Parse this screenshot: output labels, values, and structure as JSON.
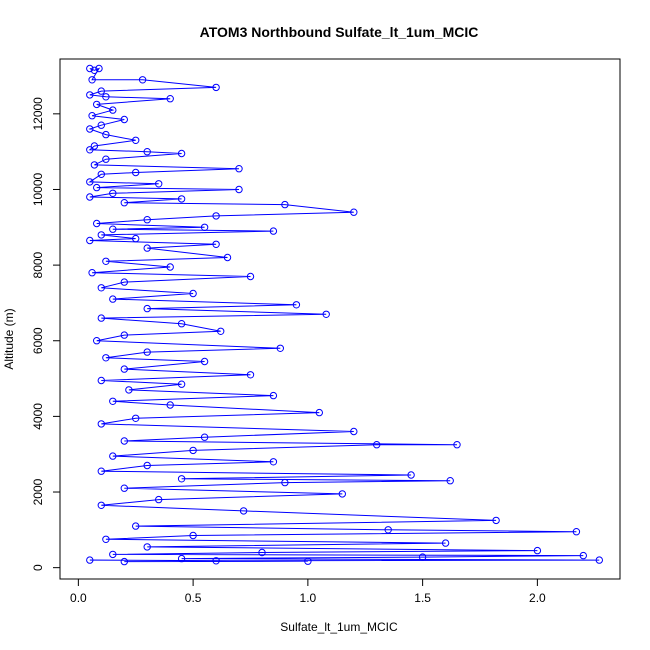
{
  "chart_data": {
    "type": "scatter",
    "title": "ATOM3 Northbound Sulfate_lt_1um_MCIC",
    "xlabel": "Sulfate_lt_1um_MCIC",
    "ylabel": "Altitude (m)",
    "xlim": [
      -0.08,
      2.36
    ],
    "ylim": [
      -300,
      13450
    ],
    "xticks": [
      0.0,
      0.5,
      1.0,
      1.5,
      2.0
    ],
    "xtick_labels": [
      "0.0",
      "0.5",
      "1.0",
      "1.5",
      "2.0"
    ],
    "yticks": [
      0,
      2000,
      4000,
      6000,
      8000,
      10000,
      12000
    ],
    "ytick_labels": [
      "0",
      "2000",
      "4000",
      "6000",
      "8000",
      "10000",
      "12000"
    ],
    "grid": false,
    "connected": true,
    "marker": "open-circle",
    "color": "#0000ff",
    "series": [
      {
        "values": [
          [
            0.05,
            13200
          ],
          [
            0.07,
            13150
          ],
          [
            0.09,
            13200
          ],
          [
            0.06,
            12900
          ],
          [
            0.28,
            12900
          ],
          [
            0.6,
            12700
          ],
          [
            0.1,
            12600
          ],
          [
            0.05,
            12500
          ],
          [
            0.12,
            12450
          ],
          [
            0.4,
            12400
          ],
          [
            0.08,
            12250
          ],
          [
            0.15,
            12100
          ],
          [
            0.06,
            11950
          ],
          [
            0.2,
            11850
          ],
          [
            0.1,
            11700
          ],
          [
            0.05,
            11600
          ],
          [
            0.12,
            11450
          ],
          [
            0.25,
            11300
          ],
          [
            0.07,
            11150
          ],
          [
            0.05,
            11050
          ],
          [
            0.3,
            11000
          ],
          [
            0.45,
            10950
          ],
          [
            0.12,
            10800
          ],
          [
            0.07,
            10650
          ],
          [
            0.7,
            10550
          ],
          [
            0.25,
            10450
          ],
          [
            0.1,
            10400
          ],
          [
            0.05,
            10200
          ],
          [
            0.35,
            10150
          ],
          [
            0.08,
            10050
          ],
          [
            0.7,
            10000
          ],
          [
            0.15,
            9900
          ],
          [
            0.05,
            9800
          ],
          [
            0.45,
            9750
          ],
          [
            0.2,
            9650
          ],
          [
            0.9,
            9600
          ],
          [
            1.2,
            9400
          ],
          [
            0.6,
            9300
          ],
          [
            0.3,
            9200
          ],
          [
            0.08,
            9100
          ],
          [
            0.55,
            9000
          ],
          [
            0.15,
            8950
          ],
          [
            0.85,
            8900
          ],
          [
            0.1,
            8800
          ],
          [
            0.25,
            8700
          ],
          [
            0.05,
            8650
          ],
          [
            0.6,
            8550
          ],
          [
            0.3,
            8450
          ],
          [
            0.65,
            8200
          ],
          [
            0.12,
            8100
          ],
          [
            0.4,
            7950
          ],
          [
            0.06,
            7800
          ],
          [
            0.75,
            7700
          ],
          [
            0.2,
            7550
          ],
          [
            0.1,
            7400
          ],
          [
            0.5,
            7250
          ],
          [
            0.15,
            7100
          ],
          [
            0.95,
            6950
          ],
          [
            0.3,
            6850
          ],
          [
            1.08,
            6700
          ],
          [
            0.1,
            6600
          ],
          [
            0.45,
            6450
          ],
          [
            0.62,
            6250
          ],
          [
            0.2,
            6150
          ],
          [
            0.08,
            6000
          ],
          [
            0.88,
            5800
          ],
          [
            0.3,
            5700
          ],
          [
            0.12,
            5550
          ],
          [
            0.55,
            5450
          ],
          [
            0.2,
            5250
          ],
          [
            0.75,
            5100
          ],
          [
            0.1,
            4950
          ],
          [
            0.45,
            4850
          ],
          [
            0.22,
            4700
          ],
          [
            0.85,
            4550
          ],
          [
            0.15,
            4400
          ],
          [
            0.4,
            4300
          ],
          [
            1.05,
            4100
          ],
          [
            0.25,
            3950
          ],
          [
            0.1,
            3800
          ],
          [
            1.2,
            3600
          ],
          [
            0.55,
            3450
          ],
          [
            0.2,
            3350
          ],
          [
            1.65,
            3250
          ],
          [
            1.3,
            3250
          ],
          [
            0.5,
            3100
          ],
          [
            0.15,
            2950
          ],
          [
            0.85,
            2800
          ],
          [
            0.3,
            2700
          ],
          [
            0.1,
            2550
          ],
          [
            1.45,
            2450
          ],
          [
            0.45,
            2350
          ],
          [
            1.62,
            2300
          ],
          [
            0.9,
            2250
          ],
          [
            0.2,
            2100
          ],
          [
            1.15,
            1950
          ],
          [
            0.35,
            1800
          ],
          [
            0.1,
            1650
          ],
          [
            0.72,
            1500
          ],
          [
            1.82,
            1250
          ],
          [
            0.25,
            1100
          ],
          [
            1.35,
            1000
          ],
          [
            2.17,
            950
          ],
          [
            0.5,
            850
          ],
          [
            0.12,
            750
          ],
          [
            1.6,
            650
          ],
          [
            0.3,
            550
          ],
          [
            2.0,
            450
          ],
          [
            0.8,
            400
          ],
          [
            0.15,
            350
          ],
          [
            2.2,
            320
          ],
          [
            1.5,
            280
          ],
          [
            0.45,
            240
          ],
          [
            2.27,
            200
          ],
          [
            0.6,
            180
          ],
          [
            0.05,
            200
          ],
          [
            1.0,
            170
          ],
          [
            0.2,
            160
          ]
        ]
      }
    ]
  }
}
